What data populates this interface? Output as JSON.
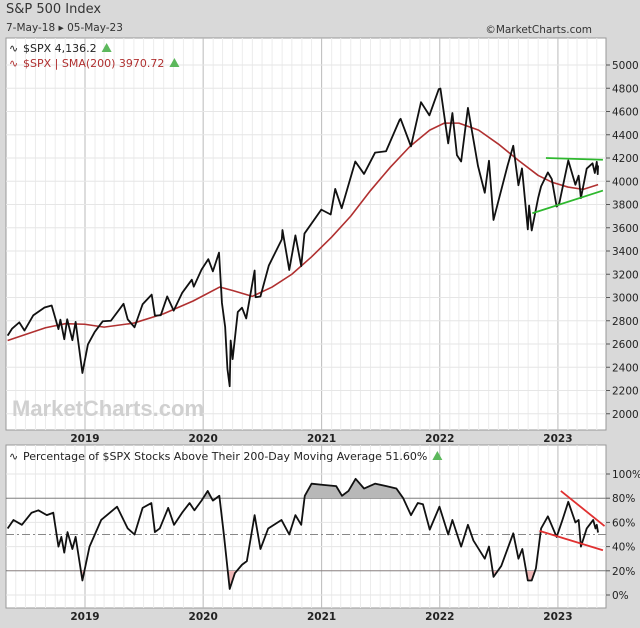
{
  "header": {
    "title": "S&P 500 Index",
    "date_range": "7-May-18 ▸ 05-May-23",
    "copyright": "©MarketCharts.com"
  },
  "watermark": "MarketCharts.com",
  "chart_data": [
    {
      "type": "line",
      "legend": [
        {
          "text": "$SPX 4,136.2",
          "color": "#222222"
        },
        {
          "text": "$SPX | SMA(200) 3970.72",
          "color": "#b03030"
        }
      ],
      "legend_placement": "top-left",
      "up_arrow_color": "#5cb85c",
      "x_tick_labels": [
        "2019",
        "2020",
        "2021",
        "2022",
        "2023"
      ],
      "y_tick_labels": [
        "2000",
        "2200",
        "2400",
        "2600",
        "2800",
        "3000",
        "3200",
        "3400",
        "3600",
        "3800",
        "4000",
        "4200",
        "4400",
        "4600",
        "4800",
        "5000"
      ],
      "ylim": [
        1860,
        5230
      ],
      "y_ticks": [
        2000,
        2200,
        2400,
        2600,
        2800,
        3000,
        3200,
        3400,
        3600,
        3800,
        4000,
        4200,
        4400,
        4600,
        4800,
        5000
      ],
      "grid": true,
      "series": [
        {
          "name": "$SPX",
          "color": "#111111",
          "points": [
            [
              "2018-05-07",
              2672
            ],
            [
              "2018-05-21",
              2733
            ],
            [
              "2018-06-12",
              2786
            ],
            [
              "2018-06-28",
              2716
            ],
            [
              "2018-07-25",
              2846
            ],
            [
              "2018-08-29",
              2914
            ],
            [
              "2018-09-20",
              2931
            ],
            [
              "2018-10-11",
              2728
            ],
            [
              "2018-10-17",
              2809
            ],
            [
              "2018-10-29",
              2641
            ],
            [
              "2018-11-07",
              2813
            ],
            [
              "2018-11-23",
              2633
            ],
            [
              "2018-12-03",
              2790
            ],
            [
              "2018-12-24",
              2351
            ],
            [
              "2019-01-10",
              2596
            ],
            [
              "2019-01-31",
              2704
            ],
            [
              "2019-02-25",
              2796
            ],
            [
              "2019-03-22",
              2800
            ],
            [
              "2019-04-30",
              2946
            ],
            [
              "2019-05-13",
              2812
            ],
            [
              "2019-06-03",
              2744
            ],
            [
              "2019-06-28",
              2942
            ],
            [
              "2019-07-26",
              3025
            ],
            [
              "2019-08-05",
              2844
            ],
            [
              "2019-08-23",
              2847
            ],
            [
              "2019-09-12",
              3009
            ],
            [
              "2019-10-02",
              2887
            ],
            [
              "2019-10-28",
              3039
            ],
            [
              "2019-11-27",
              3153
            ],
            [
              "2019-12-03",
              3093
            ],
            [
              "2019-12-27",
              3240
            ],
            [
              "2020-01-17",
              3330
            ],
            [
              "2020-01-31",
              3225
            ],
            [
              "2020-02-19",
              3386
            ],
            [
              "2020-02-28",
              2954
            ],
            [
              "2020-03-09",
              2746
            ],
            [
              "2020-03-16",
              2386
            ],
            [
              "2020-03-23",
              2237
            ],
            [
              "2020-03-26",
              2630
            ],
            [
              "2020-04-01",
              2470
            ],
            [
              "2020-04-17",
              2875
            ],
            [
              "2020-04-30",
              2912
            ],
            [
              "2020-05-13",
              2820
            ],
            [
              "2020-06-08",
              3232
            ],
            [
              "2020-06-11",
              3002
            ],
            [
              "2020-06-26",
              3009
            ],
            [
              "2020-07-22",
              3276
            ],
            [
              "2020-08-31",
              3500
            ],
            [
              "2020-09-02",
              3580
            ],
            [
              "2020-09-23",
              3237
            ],
            [
              "2020-10-12",
              3534
            ],
            [
              "2020-10-30",
              3270
            ],
            [
              "2020-11-09",
              3550
            ],
            [
              "2020-12-31",
              3756
            ],
            [
              "2021-01-29",
              3714
            ],
            [
              "2021-02-12",
              3934
            ],
            [
              "2021-03-04",
              3768
            ],
            [
              "2021-04-15",
              4170
            ],
            [
              "2021-05-12",
              4063
            ],
            [
              "2021-06-15",
              4246
            ],
            [
              "2021-07-19",
              4258
            ],
            [
              "2021-08-30",
              4528
            ],
            [
              "2021-09-02",
              4537
            ],
            [
              "2021-10-04",
              4300
            ],
            [
              "2021-11-04",
              4680
            ],
            [
              "2021-11-30",
              4567
            ],
            [
              "2021-12-29",
              4793
            ],
            [
              "2022-01-03",
              4797
            ],
            [
              "2022-01-27",
              4326
            ],
            [
              "2022-02-09",
              4587
            ],
            [
              "2022-02-23",
              4225
            ],
            [
              "2022-03-08",
              4170
            ],
            [
              "2022-03-29",
              4631
            ],
            [
              "2022-04-29",
              4132
            ],
            [
              "2022-05-20",
              3901
            ],
            [
              "2022-06-02",
              4176
            ],
            [
              "2022-06-16",
              3667
            ],
            [
              "2022-07-29",
              4130
            ],
            [
              "2022-08-16",
              4305
            ],
            [
              "2022-09-01",
              3966
            ],
            [
              "2022-09-12",
              4110
            ],
            [
              "2022-09-30",
              3586
            ],
            [
              "2022-10-04",
              3791
            ],
            [
              "2022-10-12",
              3577
            ],
            [
              "2022-11-01",
              3857
            ],
            [
              "2022-11-10",
              3956
            ],
            [
              "2022-12-01",
              4076
            ],
            [
              "2022-12-13",
              4019
            ],
            [
              "2022-12-28",
              3783
            ],
            [
              "2023-01-05",
              3808
            ],
            [
              "2023-02-02",
              4179
            ],
            [
              "2023-02-24",
              3970
            ],
            [
              "2023-03-06",
              4048
            ],
            [
              "2023-03-13",
              3855
            ],
            [
              "2023-03-31",
              4109
            ],
            [
              "2023-04-18",
              4154
            ],
            [
              "2023-04-25",
              4071
            ],
            [
              "2023-05-01",
              4167
            ],
            [
              "2023-05-04",
              4061
            ],
            [
              "2023-05-05",
              4136
            ]
          ]
        },
        {
          "name": "$SPX | SMA(200)",
          "color": "#b03030",
          "points": [
            [
              "2018-05-07",
              2630
            ],
            [
              "2018-09-01",
              2740
            ],
            [
              "2018-11-01",
              2775
            ],
            [
              "2018-12-31",
              2770
            ],
            [
              "2019-03-01",
              2745
            ],
            [
              "2019-06-01",
              2780
            ],
            [
              "2019-09-01",
              2860
            ],
            [
              "2019-12-01",
              2970
            ],
            [
              "2020-02-21",
              3090
            ],
            [
              "2020-04-01",
              3060
            ],
            [
              "2020-06-01",
              3010
            ],
            [
              "2020-08-01",
              3090
            ],
            [
              "2020-10-01",
              3200
            ],
            [
              "2020-12-01",
              3350
            ],
            [
              "2021-02-01",
              3520
            ],
            [
              "2021-04-01",
              3700
            ],
            [
              "2021-06-01",
              3920
            ],
            [
              "2021-08-01",
              4120
            ],
            [
              "2021-10-01",
              4300
            ],
            [
              "2021-12-01",
              4440
            ],
            [
              "2022-01-15",
              4500
            ],
            [
              "2022-03-01",
              4500
            ],
            [
              "2022-05-01",
              4440
            ],
            [
              "2022-07-01",
              4320
            ],
            [
              "2022-09-01",
              4180
            ],
            [
              "2022-11-01",
              4050
            ],
            [
              "2022-12-15",
              3990
            ],
            [
              "2023-02-01",
              3950
            ],
            [
              "2023-03-20",
              3930
            ],
            [
              "2023-05-05",
              3971
            ]
          ]
        }
      ],
      "trendlines": [
        {
          "color": "#2eb82e",
          "from": [
            "2022-11-25",
            4200
          ],
          "to": [
            "2023-05-20",
            4185
          ]
        },
        {
          "color": "#2eb82e",
          "from": [
            "2022-10-14",
            3725
          ],
          "to": [
            "2023-05-20",
            3920
          ]
        }
      ]
    },
    {
      "type": "line",
      "legend": [
        {
          "text": "Percentage of $SPX Stocks Above Their 200-Day Moving Average 51.60%",
          "color": "#222222"
        }
      ],
      "legend_placement": "top-left",
      "x_tick_labels": [
        "2019",
        "2020",
        "2021",
        "2022",
        "2023"
      ],
      "y_tick_labels": [
        "0%",
        "20%",
        "40%",
        "60%",
        "80%",
        "100%"
      ],
      "y_ticks": [
        0,
        20,
        40,
        60,
        80,
        100
      ],
      "ylim": [
        -10,
        118
      ],
      "grid": true,
      "reference_lines": {
        "upper": 80,
        "lower": 20,
        "middle_dashdot": 50
      },
      "shading": {
        "above_80": "#b8b8b8",
        "below_20": "#f0b8b8"
      },
      "series": [
        {
          "name": "",
          "color": "#111111",
          "points": [
            [
              "2018-05-07",
              55
            ],
            [
              "2018-05-25",
              62
            ],
            [
              "2018-06-20",
              58
            ],
            [
              "2018-07-20",
              68
            ],
            [
              "2018-08-10",
              70
            ],
            [
              "2018-09-05",
              66
            ],
            [
              "2018-09-25",
              68
            ],
            [
              "2018-10-11",
              40
            ],
            [
              "2018-10-20",
              48
            ],
            [
              "2018-10-29",
              35
            ],
            [
              "2018-11-08",
              52
            ],
            [
              "2018-11-23",
              38
            ],
            [
              "2018-12-03",
              48
            ],
            [
              "2018-12-24",
              12
            ],
            [
              "2019-01-15",
              40
            ],
            [
              "2019-02-20",
              62
            ],
            [
              "2019-04-10",
              73
            ],
            [
              "2019-05-13",
              55
            ],
            [
              "2019-06-03",
              50
            ],
            [
              "2019-06-28",
              72
            ],
            [
              "2019-07-25",
              76
            ],
            [
              "2019-08-05",
              52
            ],
            [
              "2019-08-20",
              55
            ],
            [
              "2019-09-15",
              72
            ],
            [
              "2019-10-03",
              58
            ],
            [
              "2019-10-28",
              68
            ],
            [
              "2019-11-20",
              76
            ],
            [
              "2019-12-05",
              70
            ],
            [
              "2019-12-27",
              78
            ],
            [
              "2020-01-15",
              86
            ],
            [
              "2020-01-31",
              78
            ],
            [
              "2020-02-20",
              82
            ],
            [
              "2020-03-05",
              50
            ],
            [
              "2020-03-23",
              5
            ],
            [
              "2020-04-08",
              18
            ],
            [
              "2020-04-30",
              25
            ],
            [
              "2020-05-15",
              28
            ],
            [
              "2020-06-08",
              66
            ],
            [
              "2020-06-26",
              38
            ],
            [
              "2020-07-20",
              55
            ],
            [
              "2020-08-30",
              62
            ],
            [
              "2020-09-23",
              50
            ],
            [
              "2020-10-12",
              66
            ],
            [
              "2020-10-30",
              58
            ],
            [
              "2020-11-10",
              82
            ],
            [
              "2020-12-01",
              92
            ],
            [
              "2021-01-05",
              91
            ],
            [
              "2021-02-15",
              90
            ],
            [
              "2021-03-05",
              82
            ],
            [
              "2021-03-25",
              86
            ],
            [
              "2021-04-16",
              96
            ],
            [
              "2021-05-12",
              88
            ],
            [
              "2021-06-15",
              92
            ],
            [
              "2021-07-20",
              90
            ],
            [
              "2021-08-20",
              88
            ],
            [
              "2021-09-10",
              80
            ],
            [
              "2021-10-04",
              66
            ],
            [
              "2021-10-25",
              76
            ],
            [
              "2021-11-10",
              75
            ],
            [
              "2021-12-01",
              54
            ],
            [
              "2021-12-31",
              73
            ],
            [
              "2022-01-27",
              50
            ],
            [
              "2022-02-09",
              62
            ],
            [
              "2022-03-08",
              40
            ],
            [
              "2022-03-29",
              58
            ],
            [
              "2022-04-15",
              45
            ],
            [
              "2022-05-20",
              30
            ],
            [
              "2022-06-02",
              40
            ],
            [
              "2022-06-16",
              15
            ],
            [
              "2022-07-10",
              24
            ],
            [
              "2022-08-16",
              51
            ],
            [
              "2022-09-01",
              30
            ],
            [
              "2022-09-13",
              38
            ],
            [
              "2022-09-30",
              12
            ],
            [
              "2022-10-12",
              12
            ],
            [
              "2022-10-25",
              22
            ],
            [
              "2022-11-10",
              55
            ],
            [
              "2022-12-01",
              65
            ],
            [
              "2022-12-28",
              48
            ],
            [
              "2023-01-15",
              62
            ],
            [
              "2023-02-02",
              77
            ],
            [
              "2023-02-24",
              60
            ],
            [
              "2023-03-06",
              62
            ],
            [
              "2023-03-13",
              40
            ],
            [
              "2023-03-31",
              55
            ],
            [
              "2023-04-20",
              62
            ],
            [
              "2023-04-27",
              55
            ],
            [
              "2023-05-01",
              58
            ],
            [
              "2023-05-05",
              51.6
            ]
          ]
        }
      ],
      "trendlines": [
        {
          "color": "#e03030",
          "from": [
            "2023-01-10",
            86
          ],
          "to": [
            "2023-05-25",
            57
          ]
        },
        {
          "color": "#e03030",
          "from": [
            "2022-11-05",
            53
          ],
          "to": [
            "2023-05-20",
            37
          ]
        }
      ]
    }
  ]
}
